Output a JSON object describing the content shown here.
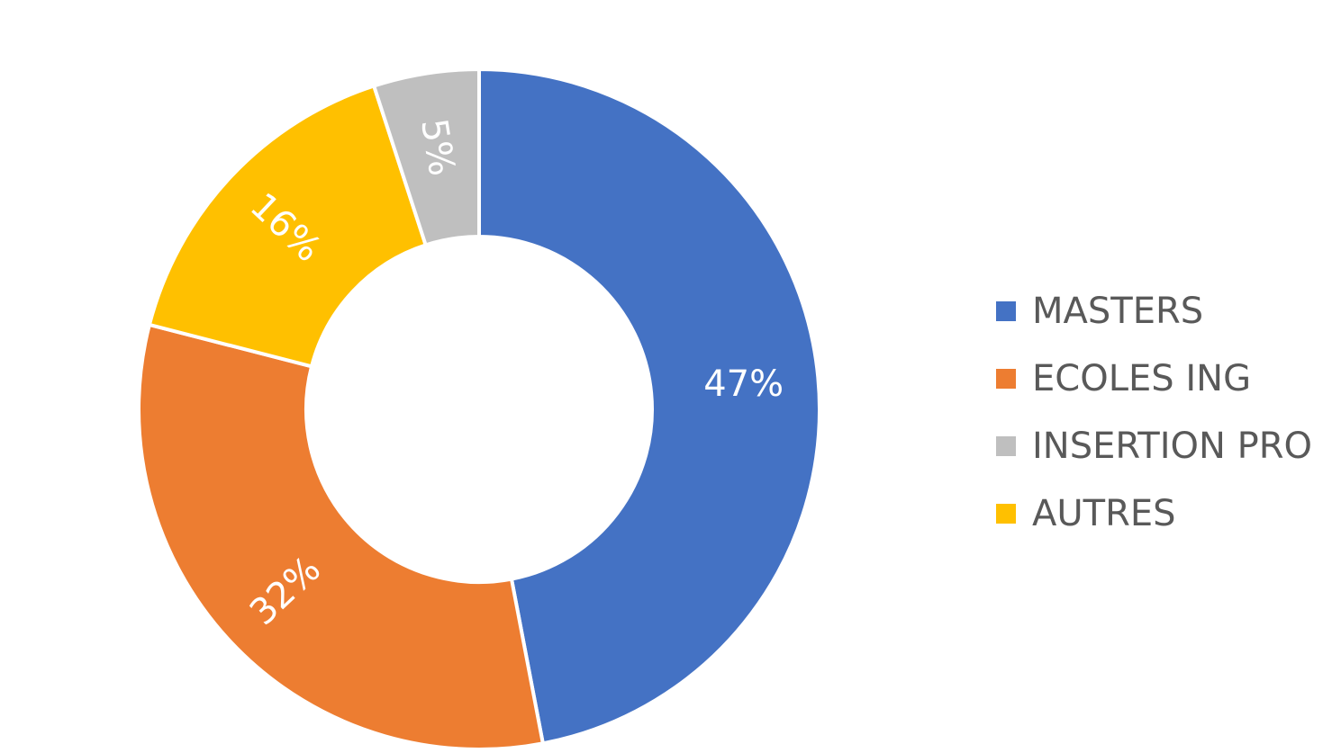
{
  "chart_data": {
    "type": "pie",
    "variant": "donut",
    "categories": [
      "MASTERS",
      "ECOLES ING",
      "INSERTION PRO",
      "AUTRES"
    ],
    "values": [
      47,
      32,
      5,
      16
    ],
    "data_labels": [
      "47%",
      "32%",
      "5%",
      "16%"
    ],
    "draw_order": [
      0,
      1,
      3,
      2
    ],
    "colors": [
      "#4472C4",
      "#ED7D31",
      "#BFBFBF",
      "#FFC000"
    ],
    "legend_position": "right",
    "legend": [
      {
        "label": "MASTERS",
        "color": "#4472C4"
      },
      {
        "label": "ECOLES ING",
        "color": "#ED7D31"
      },
      {
        "label": "INSERTION PRO",
        "color": "#BFBFBF"
      },
      {
        "label": "AUTRES",
        "color": "#FFC000"
      }
    ]
  }
}
